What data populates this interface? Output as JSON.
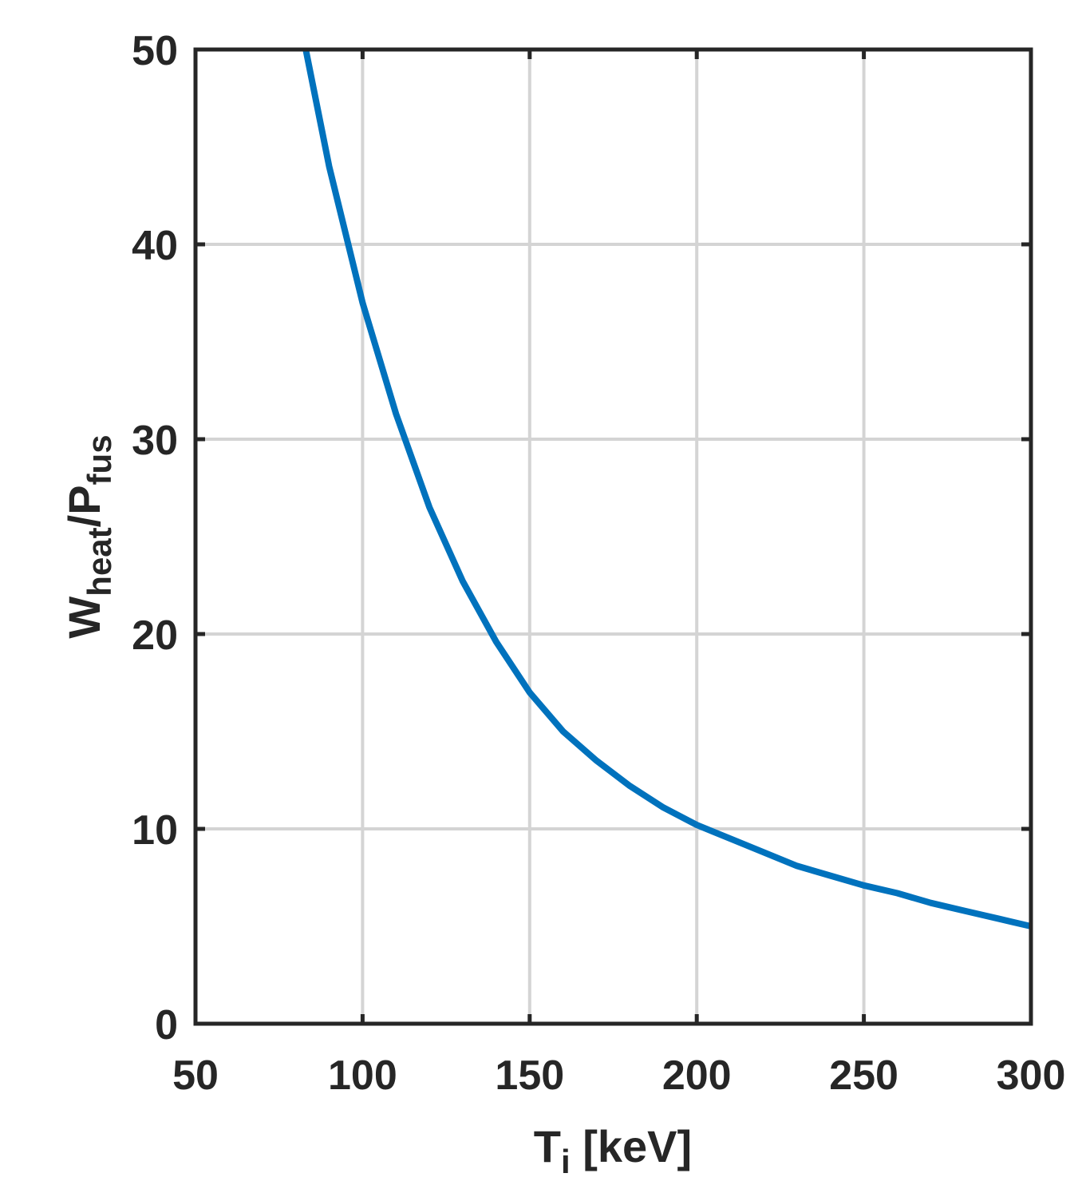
{
  "chart_data": {
    "type": "line",
    "xlabel": {
      "main": "T",
      "sub": "i",
      "rest": " [keV]"
    },
    "ylabel": {
      "main": "W",
      "sub1": "heat",
      "mid": "/P",
      "sub2": "fus"
    },
    "xlim": [
      50,
      300
    ],
    "ylim": [
      0,
      50
    ],
    "xticks": [
      50,
      100,
      150,
      200,
      250,
      300
    ],
    "yticks": [
      0,
      10,
      20,
      30,
      40,
      50
    ],
    "grid": true,
    "series": [
      {
        "color": "#0072BD",
        "x": [
          83,
          90,
          100,
          110,
          120,
          130,
          140,
          150,
          160,
          170,
          180,
          190,
          200,
          210,
          220,
          230,
          240,
          250,
          260,
          270,
          280,
          290,
          300
        ],
        "y": [
          50.0,
          44.0,
          37.0,
          31.3,
          26.5,
          22.7,
          19.6,
          17.0,
          15.0,
          13.5,
          12.2,
          11.1,
          10.2,
          9.5,
          8.8,
          8.1,
          7.6,
          7.1,
          6.7,
          6.2,
          5.8,
          5.4,
          5.0
        ]
      }
    ]
  }
}
